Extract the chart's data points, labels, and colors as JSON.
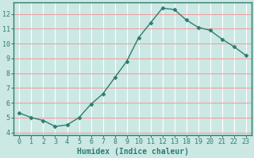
{
  "x_labels": [
    "0",
    "1",
    "2",
    "3",
    "4",
    "5",
    "6",
    "7",
    "8",
    "9",
    "10",
    "11",
    "12",
    "13",
    "18",
    "19",
    "20",
    "21",
    "22",
    "23"
  ],
  "y": [
    5.3,
    5.0,
    4.8,
    4.4,
    4.5,
    5.0,
    5.9,
    6.6,
    7.7,
    8.8,
    10.4,
    11.4,
    12.4,
    12.3,
    11.6,
    11.1,
    10.9,
    10.3,
    9.8,
    9.2
  ],
  "line_color": "#2d7d6e",
  "marker": "D",
  "marker_size": 2.5,
  "bg_color": "#cce8e4",
  "grid_color_x": "#ffffff",
  "grid_color_y": "#f0a0a0",
  "xlabel": "Humidex (Indice chaleur)",
  "xlim": [
    -0.5,
    19.5
  ],
  "ylim": [
    3.8,
    12.8
  ],
  "yticks": [
    4,
    5,
    6,
    7,
    8,
    9,
    10,
    11,
    12
  ],
  "xlabel_fontsize": 7,
  "tick_fontsize": 6,
  "axis_color": "#2d7d6e",
  "linewidth": 1.0
}
